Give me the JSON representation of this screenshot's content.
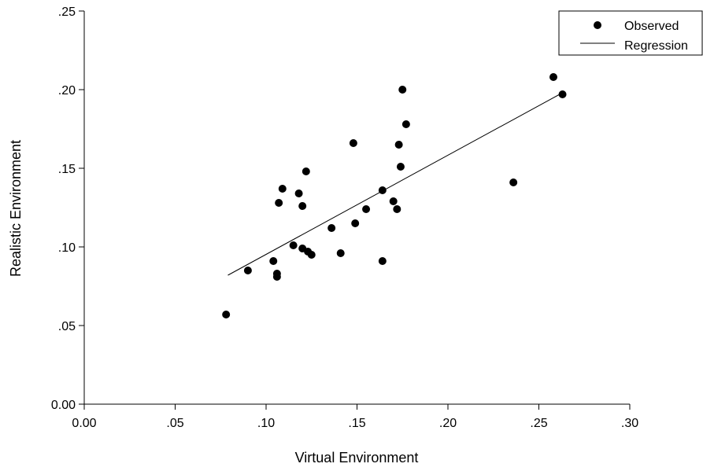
{
  "chart_data": {
    "type": "scatter",
    "xlabel": "Virtual Environment",
    "ylabel": "Realistic Environment",
    "xlim": [
      0.0,
      0.3
    ],
    "ylim": [
      0.0,
      0.25
    ],
    "x_ticks": [
      0.0,
      0.05,
      0.1,
      0.15,
      0.2,
      0.25,
      0.3
    ],
    "x_tick_labels": [
      "0.00",
      ".05",
      ".10",
      ".15",
      ".20",
      ".25",
      ".30"
    ],
    "y_ticks": [
      0.0,
      0.05,
      0.1,
      0.15,
      0.2,
      0.25
    ],
    "y_tick_labels": [
      "0.00",
      ".05",
      ".10",
      ".15",
      ".20",
      ".25"
    ],
    "grid": false,
    "legend": {
      "position": "top-right",
      "entries": [
        {
          "label": "Observed",
          "marker": "circle"
        },
        {
          "label": "Regression",
          "marker": "line"
        }
      ]
    },
    "series": [
      {
        "name": "Observed",
        "kind": "scatter",
        "color": "#000000",
        "points": [
          [
            0.078,
            0.057
          ],
          [
            0.09,
            0.085
          ],
          [
            0.104,
            0.091
          ],
          [
            0.106,
            0.083
          ],
          [
            0.106,
            0.081
          ],
          [
            0.107,
            0.128
          ],
          [
            0.109,
            0.137
          ],
          [
            0.115,
            0.101
          ],
          [
            0.118,
            0.134
          ],
          [
            0.12,
            0.126
          ],
          [
            0.12,
            0.099
          ],
          [
            0.122,
            0.148
          ],
          [
            0.123,
            0.097
          ],
          [
            0.125,
            0.095
          ],
          [
            0.136,
            0.112
          ],
          [
            0.141,
            0.096
          ],
          [
            0.148,
            0.166
          ],
          [
            0.149,
            0.115
          ],
          [
            0.155,
            0.124
          ],
          [
            0.164,
            0.136
          ],
          [
            0.164,
            0.091
          ],
          [
            0.17,
            0.129
          ],
          [
            0.172,
            0.124
          ],
          [
            0.173,
            0.165
          ],
          [
            0.174,
            0.151
          ],
          [
            0.175,
            0.2
          ],
          [
            0.177,
            0.178
          ],
          [
            0.236,
            0.141
          ],
          [
            0.258,
            0.208
          ],
          [
            0.263,
            0.197
          ]
        ]
      },
      {
        "name": "Regression",
        "kind": "line",
        "color": "#000000",
        "points": [
          [
            0.079,
            0.082
          ],
          [
            0.263,
            0.198
          ]
        ]
      }
    ]
  }
}
